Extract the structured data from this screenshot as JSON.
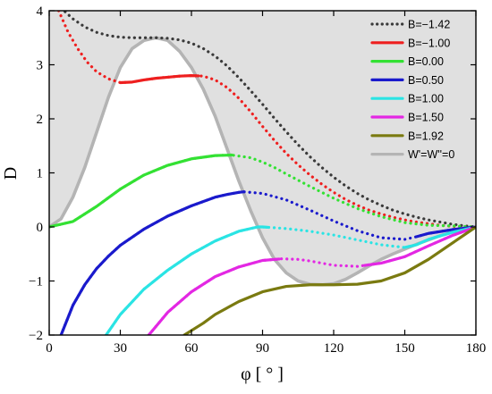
{
  "chart_data": {
    "type": "line",
    "xlabel": "φ [ ° ]",
    "ylabel": "D",
    "xlim": [
      0,
      180
    ],
    "ylim": [
      -2,
      4
    ],
    "xticks": [
      0,
      30,
      60,
      90,
      120,
      150,
      180
    ],
    "yticks": [
      -2,
      -1,
      0,
      1,
      2,
      3,
      4
    ],
    "xtick_labels": [
      "0",
      "30",
      "60",
      "90",
      "120",
      "150",
      "180"
    ],
    "ytick_labels": [
      "−2",
      "−1",
      "0",
      "1",
      "2",
      "3",
      "4"
    ],
    "grid": false,
    "legend_position": "top-right",
    "shaded_region": {
      "description": "gray area above the W'=W''=0 boundary",
      "color": "#e0e0e0"
    },
    "series": [
      {
        "name": "B=−1.42",
        "color": "#3a3a3a",
        "style": "dotted",
        "x": [
          5,
          10,
          15,
          20,
          25,
          30,
          35,
          40,
          45,
          50,
          55,
          60,
          65,
          70,
          75,
          80,
          85,
          90,
          95,
          100,
          105,
          110,
          115,
          120,
          125,
          130,
          135,
          140,
          145,
          150,
          155,
          160,
          165,
          170,
          175,
          180
        ],
        "y": [
          4.05,
          3.85,
          3.7,
          3.6,
          3.54,
          3.51,
          3.5,
          3.5,
          3.5,
          3.49,
          3.46,
          3.4,
          3.3,
          3.16,
          2.98,
          2.76,
          2.52,
          2.27,
          2.01,
          1.76,
          1.52,
          1.3,
          1.1,
          0.92,
          0.76,
          0.62,
          0.5,
          0.4,
          0.31,
          0.24,
          0.18,
          0.13,
          0.09,
          0.05,
          0.02,
          0.0
        ],
        "segments": []
      },
      {
        "name": "B=−1.00",
        "color": "#ee1f1f",
        "style": "mixed",
        "x": [
          4,
          8,
          12,
          16,
          20,
          25,
          30,
          35,
          40,
          45,
          50,
          55,
          60,
          65,
          70,
          75,
          80,
          85,
          90,
          95,
          100,
          105,
          110,
          115,
          120,
          125,
          130,
          135,
          140,
          145,
          150,
          155,
          160,
          165,
          170,
          175,
          180
        ],
        "y": [
          4.0,
          3.6,
          3.3,
          3.05,
          2.87,
          2.74,
          2.67,
          2.68,
          2.72,
          2.75,
          2.77,
          2.79,
          2.8,
          2.79,
          2.72,
          2.58,
          2.38,
          2.13,
          1.86,
          1.6,
          1.36,
          1.15,
          0.96,
          0.79,
          0.64,
          0.51,
          0.4,
          0.31,
          0.24,
          0.18,
          0.13,
          0.09,
          0.06,
          0.03,
          0.01,
          0.005,
          0.0
        ],
        "segments": [
          [
            30,
            63
          ]
        ]
      },
      {
        "name": "B=0.00",
        "color": "#33e133",
        "style": "mixed",
        "x": [
          0,
          10,
          20,
          30,
          40,
          50,
          60,
          70,
          77,
          85,
          90,
          95,
          100,
          110,
          120,
          130,
          140,
          150,
          160,
          170,
          180
        ],
        "y": [
          0.0,
          0.1,
          0.38,
          0.7,
          0.96,
          1.14,
          1.26,
          1.32,
          1.33,
          1.28,
          1.2,
          1.1,
          0.98,
          0.75,
          0.53,
          0.34,
          0.19,
          0.08,
          0.03,
          0.02,
          0.0
        ],
        "segments": [
          [
            0,
            77
          ]
        ]
      },
      {
        "name": "B=0.50",
        "color": "#1a1acc",
        "style": "mixed",
        "x": [
          5,
          10,
          15,
          20,
          25,
          30,
          40,
          50,
          60,
          70,
          75,
          80,
          82,
          90,
          100,
          110,
          120,
          130,
          140,
          150,
          155,
          160,
          170,
          180
        ],
        "y": [
          -2.0,
          -1.45,
          -1.07,
          -0.77,
          -0.54,
          -0.34,
          -0.04,
          0.2,
          0.39,
          0.55,
          0.6,
          0.64,
          0.65,
          0.62,
          0.5,
          0.31,
          0.11,
          -0.07,
          -0.2,
          -0.23,
          -0.18,
          -0.12,
          -0.05,
          0.0
        ],
        "segments": [
          [
            5,
            82
          ],
          [
            155,
            180
          ]
        ]
      },
      {
        "name": "B=1.00",
        "color": "#2ae4e4",
        "style": "mixed",
        "x": [
          24,
          30,
          40,
          50,
          60,
          70,
          80,
          88,
          90,
          100,
          110,
          120,
          130,
          140,
          150,
          155,
          160,
          170,
          180
        ],
        "y": [
          -2.0,
          -1.62,
          -1.15,
          -0.8,
          -0.5,
          -0.26,
          -0.08,
          0.0,
          0.0,
          -0.03,
          -0.08,
          -0.15,
          -0.24,
          -0.33,
          -0.38,
          -0.33,
          -0.23,
          -0.1,
          0.0
        ],
        "segments": [
          [
            24,
            92
          ],
          [
            150,
            180
          ]
        ]
      },
      {
        "name": "B=1.50",
        "color": "#e327e3",
        "style": "mixed",
        "x": [
          42,
          50,
          60,
          70,
          80,
          90,
          98,
          105,
          110,
          120,
          130,
          140,
          150,
          160,
          170,
          180
        ],
        "y": [
          -2.0,
          -1.58,
          -1.2,
          -0.92,
          -0.74,
          -0.62,
          -0.59,
          -0.6,
          -0.63,
          -0.71,
          -0.73,
          -0.67,
          -0.55,
          -0.35,
          -0.16,
          0.0
        ],
        "segments": [
          [
            42,
            97
          ],
          [
            133,
            180
          ]
        ]
      },
      {
        "name": "B=1.92",
        "color": "#7a7a10",
        "style": "solid",
        "x": [
          57,
          65,
          70,
          80,
          90,
          100,
          110,
          120,
          130,
          140,
          150,
          160,
          170,
          180
        ],
        "y": [
          -2.0,
          -1.78,
          -1.62,
          -1.38,
          -1.2,
          -1.1,
          -1.07,
          -1.07,
          -1.06,
          -1.0,
          -0.85,
          -0.6,
          -0.3,
          0.0
        ],
        "segments": []
      },
      {
        "name": "W'=W''=0",
        "color": "#b4b4b4",
        "style": "solid",
        "x": [
          0,
          5,
          10,
          15,
          20,
          25,
          30,
          35,
          40,
          45,
          50,
          55,
          60,
          65,
          70,
          75,
          80,
          85,
          90,
          95,
          100,
          105,
          110,
          115,
          120,
          125,
          130,
          135,
          140,
          145,
          150,
          155,
          160,
          165,
          170,
          175,
          180
        ],
        "y": [
          0.0,
          0.15,
          0.55,
          1.1,
          1.75,
          2.4,
          2.95,
          3.3,
          3.45,
          3.5,
          3.45,
          3.25,
          2.95,
          2.55,
          2.05,
          1.45,
          0.85,
          0.3,
          -0.2,
          -0.6,
          -0.85,
          -1.0,
          -1.06,
          -1.07,
          -1.05,
          -0.97,
          -0.85,
          -0.72,
          -0.6,
          -0.5,
          -0.41,
          -0.32,
          -0.24,
          -0.16,
          -0.1,
          -0.04,
          0.0
        ],
        "segments": []
      }
    ]
  }
}
